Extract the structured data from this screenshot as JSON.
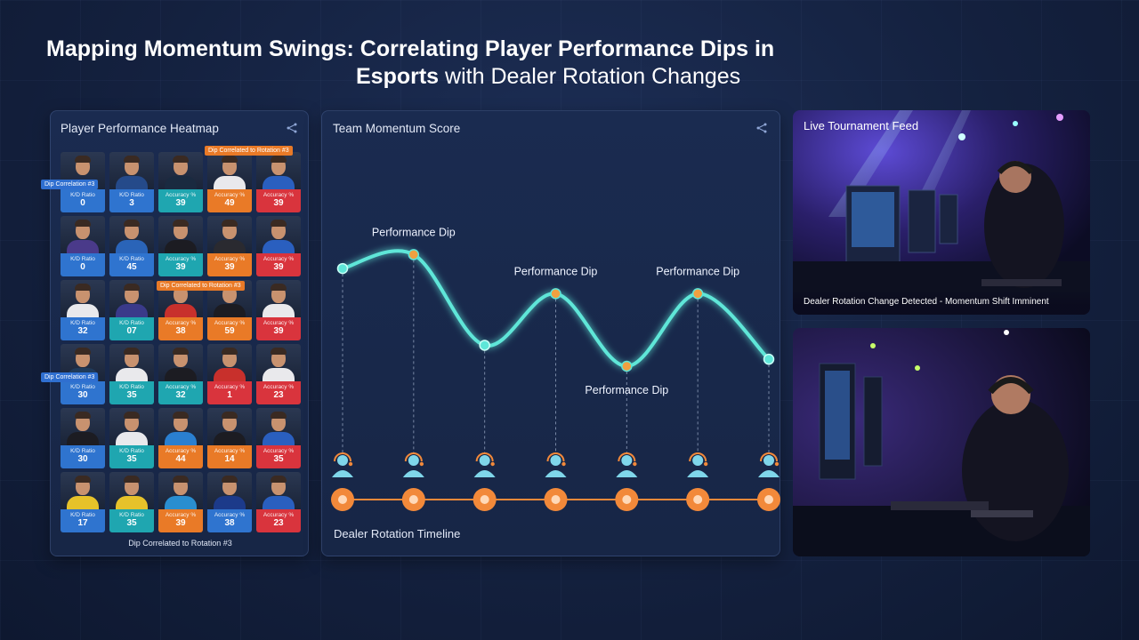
{
  "title": {
    "line1": "Mapping Momentum Swings: Correlating Player Performance Dips in",
    "line2_bold": "Esports",
    "line2_rest": " with Dealer Rotation Changes"
  },
  "heatmap": {
    "title": "Player Performance Heatmap",
    "share_icon": "share-icon",
    "footer": "Dip Correlated to Rotation #3",
    "tags": [
      {
        "text": "Dip Correlated to Rotation #3",
        "color": "orange"
      },
      {
        "text": "Dip Correlation #3",
        "color": "blue"
      },
      {
        "text": "Dip Correlated to Rotation #3",
        "color": "orange"
      },
      {
        "text": "Dip Correlation #3",
        "color": "blue"
      }
    ],
    "rows": [
      [
        {
          "label": "K/D Ratio",
          "value": "0",
          "color": "#2f74cf"
        },
        {
          "label": "K/D Ratio",
          "value": "3",
          "color": "#2f74cf"
        },
        {
          "label": "Accuracy %",
          "value": "39",
          "color": "#1fa6b0"
        },
        {
          "label": "Accuracy %",
          "value": "49",
          "color": "#e97a27"
        },
        {
          "label": "Accuracy %",
          "value": "39",
          "color": "#d9343d"
        }
      ],
      [
        {
          "label": "K/D Ratio",
          "value": "0",
          "color": "#2f74cf"
        },
        {
          "label": "K/D Ratio",
          "value": "45",
          "color": "#2f74cf"
        },
        {
          "label": "Accuracy %",
          "value": "39",
          "color": "#1fa6b0"
        },
        {
          "label": "Accuracy %",
          "value": "39",
          "color": "#e97a27"
        },
        {
          "label": "Accuracy %",
          "value": "39",
          "color": "#d9343d"
        }
      ],
      [
        {
          "label": "K/D Ratio",
          "value": "32",
          "color": "#2f74cf"
        },
        {
          "label": "K/D Ratio",
          "value": "07",
          "color": "#1fa6b0"
        },
        {
          "label": "Accuracy %",
          "value": "38",
          "color": "#e97a27"
        },
        {
          "label": "Accuracy %",
          "value": "59",
          "color": "#e97a27"
        },
        {
          "label": "Accuracy %",
          "value": "39",
          "color": "#d9343d"
        }
      ],
      [
        {
          "label": "K/D Ratio",
          "value": "30",
          "color": "#2f74cf"
        },
        {
          "label": "K/D Ratio",
          "value": "35",
          "color": "#1fa6b0"
        },
        {
          "label": "Accuracy %",
          "value": "32",
          "color": "#1fa6b0"
        },
        {
          "label": "Accuracy %",
          "value": "1",
          "color": "#d9343d"
        },
        {
          "label": "Accuracy %",
          "value": "23",
          "color": "#d9343d"
        }
      ],
      [
        {
          "label": "K/D Ratio",
          "value": "30",
          "color": "#2f74cf"
        },
        {
          "label": "K/D Ratio",
          "value": "35",
          "color": "#1fa6b0"
        },
        {
          "label": "Accuracy %",
          "value": "44",
          "color": "#e97a27"
        },
        {
          "label": "Accuracy %",
          "value": "14",
          "color": "#e97a27"
        },
        {
          "label": "Accuracy %",
          "value": "35",
          "color": "#d9343d"
        }
      ],
      [
        {
          "label": "K/D Ratio",
          "value": "17",
          "color": "#2f74cf"
        },
        {
          "label": "K/D Ratio",
          "value": "35",
          "color": "#1fa6b0"
        },
        {
          "label": "Accuracy %",
          "value": "39",
          "color": "#e97a27"
        },
        {
          "label": "Accuracy %",
          "value": "38",
          "color": "#2f74cf"
        },
        {
          "label": "Accuracy %",
          "value": "23",
          "color": "#d9343d"
        }
      ]
    ],
    "jersey_colors": [
      [
        "#1e2a44",
        "#254a8a",
        "#1a2a40",
        "#e9e9ec",
        "#2a5fbf"
      ],
      [
        "#4a3a8a",
        "#2a64b8",
        "#1c1c22",
        "#2a2a30",
        "#2a5fbf"
      ],
      [
        "#e9e9ec",
        "#3a3a8a",
        "#c8302c",
        "#1c1c22",
        "#e9e9ec"
      ],
      [
        "#1f3a5a",
        "#e9e9ec",
        "#1c1c22",
        "#c8302c",
        "#e9e9ec"
      ],
      [
        "#1c1c22",
        "#e9e9ec",
        "#2a7fd0",
        "#1c1c22",
        "#2a5fbf"
      ],
      [
        "#e6c22a",
        "#e6c22a",
        "#2a8ed0",
        "#1c3a8a",
        "#2a5fbf"
      ]
    ]
  },
  "momentum": {
    "title": "Team Momentum Score",
    "share_icon": "share-icon",
    "timeline_label": "Dealer Rotation Timeline",
    "line_color": "#5ee6d8",
    "dealer_color": "#f2893a",
    "dealer_icon": "headset-dealer-icon"
  },
  "chart_data": {
    "type": "line",
    "title": "Team Momentum Score",
    "xlabel": "Dealer Rotation Timeline",
    "ylabel": "",
    "x": [
      1,
      2,
      3,
      4,
      5,
      6,
      7
    ],
    "series": [
      {
        "values": [
          70,
          80,
          15,
          52,
          0,
          52,
          5
        ]
      }
    ],
    "ylim": [
      0,
      100
    ],
    "annotations": [
      {
        "x": 2,
        "text": "Performance Dip"
      },
      {
        "x": 4,
        "text": "Performance Dip"
      },
      {
        "x": 5,
        "text": "Performance Dip"
      },
      {
        "x": 6,
        "text": "Performance Dip"
      }
    ],
    "grid": false
  },
  "feed": {
    "title": "Live Tournament Feed",
    "caption": "Dealer Rotation Change Detected - Momentum Shift Imminent"
  }
}
